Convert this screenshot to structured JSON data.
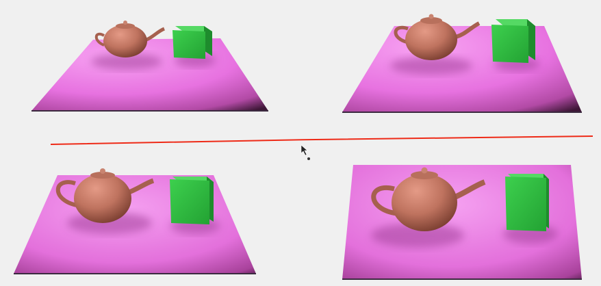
{
  "scene": {
    "background": "#f0f0f0",
    "plane_colors": {
      "light": "#f08ff0",
      "mid": "#e066d8",
      "dark": "#4a1a3e",
      "edge": "#3b2a3f"
    },
    "teapot_color": "#b56a57",
    "teapot_shadow": "#8a4638",
    "cube_color": "#2bbb3d",
    "cube_dark": "#1d8a2c",
    "divider_color": "#ee2a17",
    "panels": [
      {
        "position": "top-left",
        "teapot": "teapot-icon",
        "cube": "cube-icon"
      },
      {
        "position": "top-right",
        "teapot": "teapot-icon",
        "cube": "cube-icon"
      },
      {
        "position": "bottom-left",
        "teapot": "teapot-icon",
        "cube": "cube-icon"
      },
      {
        "position": "bottom-right",
        "teapot": "teapot-icon",
        "cube": "cube-icon"
      }
    ]
  }
}
